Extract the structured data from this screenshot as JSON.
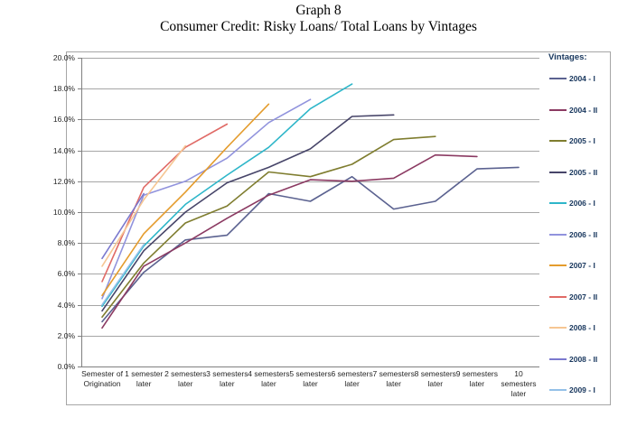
{
  "title": {
    "line1": "Graph 8",
    "line2": "Consumer Credit: Risky Loans/ Total Loans by Vintages"
  },
  "chart_data": {
    "type": "line",
    "title": "Graph 8",
    "subtitle": "Consumer Credit: Risky Loans/ Total Loans by Vintages",
    "units": "percent",
    "grid": true,
    "legend_title": "Vintages:",
    "legend_position": "right",
    "y_axis": {
      "min": 0,
      "max": 20,
      "step": 2,
      "tick_labels": [
        "0.0%",
        "2.0%",
        "4.0%",
        "6.0%",
        "8.0%",
        "10.0%",
        "12.0%",
        "14.0%",
        "16.0%",
        "18.0%",
        "20.0%"
      ]
    },
    "x_axis": {
      "categories": [
        [
          "Semester of",
          "Origination"
        ],
        [
          "1 semester",
          "later"
        ],
        [
          "2 semesters",
          "later"
        ],
        [
          "3 semesters",
          "later"
        ],
        [
          "4 semesters",
          "later"
        ],
        [
          "5 semesters",
          "later"
        ],
        [
          "6 semesters",
          "later"
        ],
        [
          "7 semesters",
          "later"
        ],
        [
          "8 semesters",
          "later"
        ],
        [
          "9 semesters",
          "later"
        ],
        [
          "10",
          "semesters",
          "later"
        ]
      ]
    },
    "series": [
      {
        "name": "2004 - I",
        "color": "#5B6290",
        "values": [
          2.9,
          6.1,
          8.2,
          8.5,
          11.2,
          10.7,
          12.3,
          10.2,
          10.7,
          12.8,
          12.9
        ]
      },
      {
        "name": "2004 - II",
        "color": "#8B3A62",
        "values": [
          2.5,
          6.5,
          8.0,
          9.6,
          11.1,
          12.1,
          12.0,
          12.2,
          13.7,
          13.6
        ]
      },
      {
        "name": "2005 - I",
        "color": "#7F7D2F",
        "values": [
          3.2,
          6.7,
          9.3,
          10.4,
          12.6,
          12.3,
          13.1,
          14.7,
          14.9
        ]
      },
      {
        "name": "2005 - II",
        "color": "#474569",
        "values": [
          3.6,
          7.5,
          10.0,
          11.9,
          12.9,
          14.1,
          16.2,
          16.3
        ]
      },
      {
        "name": "2006 - I",
        "color": "#2EB6C9",
        "values": [
          3.9,
          7.8,
          10.5,
          12.4,
          14.2,
          16.7,
          18.3
        ]
      },
      {
        "name": "2006 - II",
        "color": "#9193DD",
        "values": [
          4.4,
          11.1,
          12.0,
          13.5,
          15.8,
          17.3
        ]
      },
      {
        "name": "2007 - I",
        "color": "#E49C2D",
        "values": [
          4.6,
          8.6,
          11.3,
          14.2,
          17.0
        ]
      },
      {
        "name": "2007 - II",
        "color": "#E06A66",
        "values": [
          5.5,
          11.6,
          14.2,
          15.7
        ]
      },
      {
        "name": "2008 - I",
        "color": "#F6C693",
        "values": [
          6.5,
          10.8,
          14.3
        ]
      },
      {
        "name": "2008 - II",
        "color": "#7B79CE",
        "values": [
          7.0,
          11.2
        ]
      },
      {
        "name": "2009 - I",
        "color": "#94C0E8",
        "values": [
          4.0,
          7.9
        ]
      }
    ],
    "colors": {
      "gridline": "#A6A6A6",
      "axis": "#808080",
      "outer_border": "#A6A6A6",
      "axis_label": "#262626",
      "legend_text": "#17365D"
    }
  }
}
